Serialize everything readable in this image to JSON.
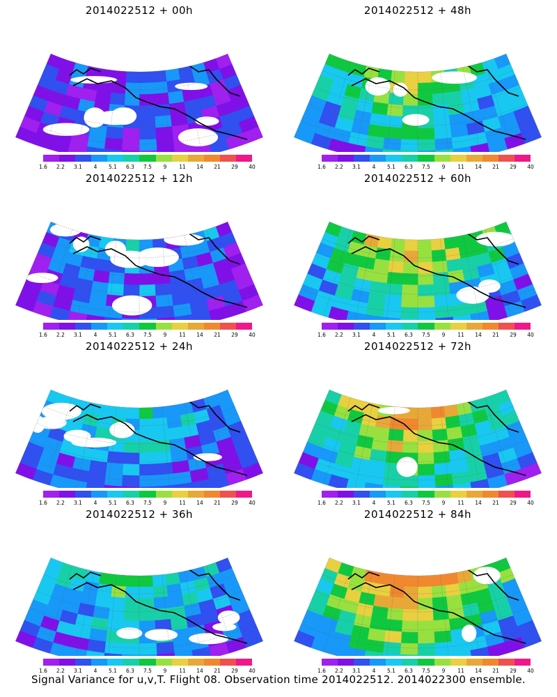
{
  "panels": [
    {
      "id": "p00",
      "title": "2014022512 + 00h",
      "intensity": 0.15
    },
    {
      "id": "p48",
      "title": "2014022512 + 48h",
      "intensity": 0.6
    },
    {
      "id": "p12",
      "title": "2014022512 + 12h",
      "intensity": 0.25
    },
    {
      "id": "p60",
      "title": "2014022512 + 60h",
      "intensity": 0.68
    },
    {
      "id": "p24",
      "title": "2014022512 + 24h",
      "intensity": 0.35
    },
    {
      "id": "p72",
      "title": "2014022512 + 72h",
      "intensity": 0.76
    },
    {
      "id": "p36",
      "title": "2014022512 + 36h",
      "intensity": 0.45
    },
    {
      "id": "p84",
      "title": "2014022512 + 84h",
      "intensity": 0.85
    }
  ],
  "colorbar": {
    "labels": [
      "1.6",
      "2.2",
      "3.1",
      "4",
      "5.1",
      "6.3",
      "7.5",
      "9",
      "11",
      "14",
      "21",
      "29",
      "40"
    ],
    "colors": [
      "#a020f0",
      "#8010e8",
      "#3050f0",
      "#1898f8",
      "#18c8f0",
      "#18d0a8",
      "#10c840",
      "#98e040",
      "#e8d040",
      "#e8a838",
      "#f08830",
      "#f05050",
      "#f01888"
    ]
  },
  "footer": "Signal Variance for u,v,T. Flight 08. Observation time 2014022512. 2014022300 ensemble."
}
